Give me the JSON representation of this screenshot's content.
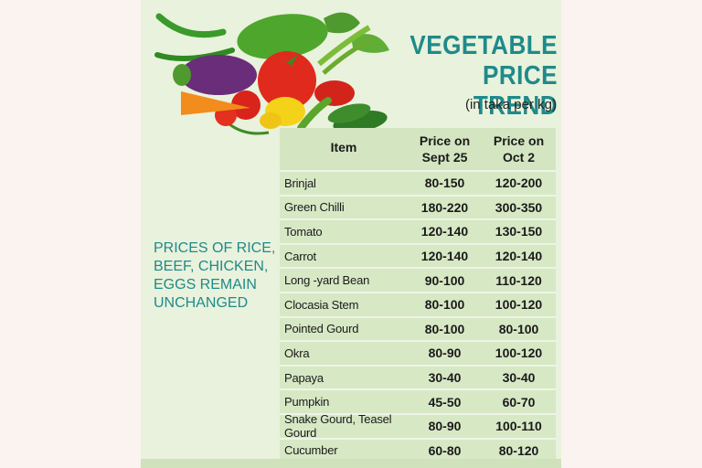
{
  "title_line1": "VEGETABLE",
  "title_line2": "PRICE TREND",
  "subtitle": "(in taka per kg)",
  "note": "PRICES OF RICE, BEEF, CHICKEN, EGGS REMAIN UNCHANGED",
  "colors": {
    "accent": "#1f8a8a",
    "background": "#e9f2dc",
    "table_fill": "#d7e8c5"
  },
  "table": {
    "headers": [
      "Item",
      "Price on Sept 25",
      "Price on Oct 2"
    ],
    "rows": [
      {
        "item": "Brinjal",
        "sept25": "80-150",
        "oct2": "120-200"
      },
      {
        "item": "Green Chilli",
        "sept25": "180-220",
        "oct2": "300-350"
      },
      {
        "item": "Tomato",
        "sept25": "120-140",
        "oct2": "130-150"
      },
      {
        "item": "Carrot",
        "sept25": "120-140",
        "oct2": "120-140"
      },
      {
        "item": "Long -yard Bean",
        "sept25": "90-100",
        "oct2": "110-120"
      },
      {
        "item": "Clocasia Stem",
        "sept25": "80-100",
        "oct2": "100-120"
      },
      {
        "item": "Pointed Gourd",
        "sept25": "80-100",
        "oct2": "80-100"
      },
      {
        "item": "Okra",
        "sept25": "80-90",
        "oct2": "100-120"
      },
      {
        "item": "Papaya",
        "sept25": "30-40",
        "oct2": "30-40"
      },
      {
        "item": "Pumpkin",
        "sept25": "45-50",
        "oct2": "60-70"
      },
      {
        "item": "Snake Gourd, Teasel Gourd",
        "sept25": "80-90",
        "oct2": "100-110"
      },
      {
        "item": "Cucumber",
        "sept25": "60-80",
        "oct2": "80-120"
      }
    ]
  }
}
